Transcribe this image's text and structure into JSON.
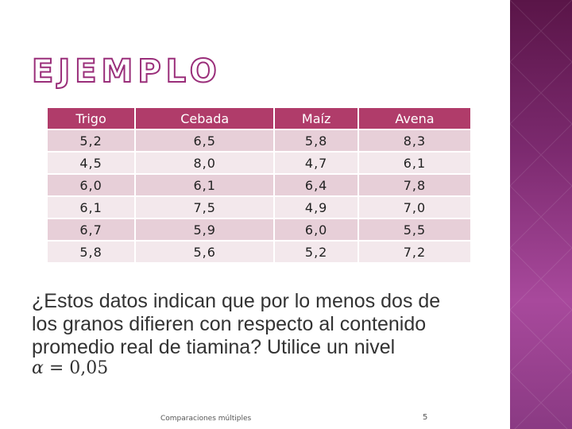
{
  "slide": {
    "title": "EJEMPLO",
    "table": {
      "headers": [
        "Trigo",
        "Cebada",
        "Maíz",
        "Avena"
      ],
      "rows": [
        [
          "5,2",
          "6,5",
          "5,8",
          "8,3"
        ],
        [
          "4,5",
          "8,0",
          "4,7",
          "6,1"
        ],
        [
          "6,0",
          "6,1",
          "6,4",
          "7,8"
        ],
        [
          "6,1",
          "7,5",
          "4,9",
          "7,0"
        ],
        [
          "6,7",
          "5,9",
          "6,0",
          "5,5"
        ],
        [
          "5,8",
          "5,6",
          "5,2",
          "7,2"
        ]
      ]
    },
    "question": "¿Estos datos indican que por lo menos dos de los granos difieren con respecto al contenido promedio real de tiamina? Utilice un nivel",
    "alpha_symbol": "α",
    "alpha_value": "= 0,05",
    "footer": "Comparaciones múltiples",
    "page_number": "5"
  },
  "colors": {
    "header_bg": "#b03c6a",
    "row_odd_bg": "#e7cfd8",
    "row_even_bg": "#f3e8ec",
    "title_outline": "#9a2e7a",
    "side_panel": "#7c2a6f"
  }
}
